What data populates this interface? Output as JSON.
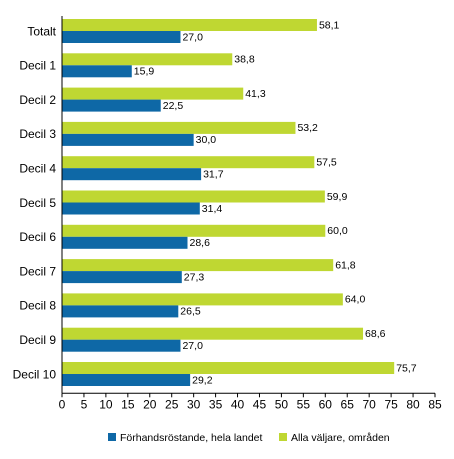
{
  "chart_data": {
    "type": "bar",
    "orientation": "horizontal",
    "categories": [
      "Totalt",
      "Decil 1",
      "Decil 2",
      "Decil 3",
      "Decil 4",
      "Decil 5",
      "Decil 6",
      "Decil 7",
      "Decil 8",
      "Decil 9",
      "Decil 10"
    ],
    "series": [
      {
        "name": "Förhandsröstande, hela landet",
        "color": "#0e68a6",
        "values": [
          27.0,
          15.9,
          22.5,
          30.0,
          31.7,
          31.4,
          28.6,
          27.3,
          26.5,
          27.0,
          29.2
        ],
        "labels": [
          "27,0",
          "15,9",
          "22,5",
          "30,0",
          "31,7",
          "31,4",
          "28,6",
          "27,3",
          "26,5",
          "27,0",
          "29,2"
        ]
      },
      {
        "name": "Alla väljare, områden",
        "color": "#bfd732",
        "values": [
          58.1,
          38.8,
          41.3,
          53.2,
          57.5,
          59.9,
          60.0,
          61.8,
          64.0,
          68.6,
          75.7
        ],
        "labels": [
          "58,1",
          "38,8",
          "41,3",
          "53,2",
          "57,5",
          "59,9",
          "60,0",
          "61,8",
          "64,0",
          "68,6",
          "75,7"
        ]
      }
    ],
    "xlim": [
      0,
      85
    ],
    "xticks": [
      0,
      5,
      10,
      15,
      20,
      25,
      30,
      35,
      40,
      45,
      50,
      55,
      60,
      65,
      70,
      75,
      80,
      85
    ],
    "title": "",
    "xlabel": "",
    "ylabel": "",
    "grid": false,
    "legend_position": "bottom"
  }
}
